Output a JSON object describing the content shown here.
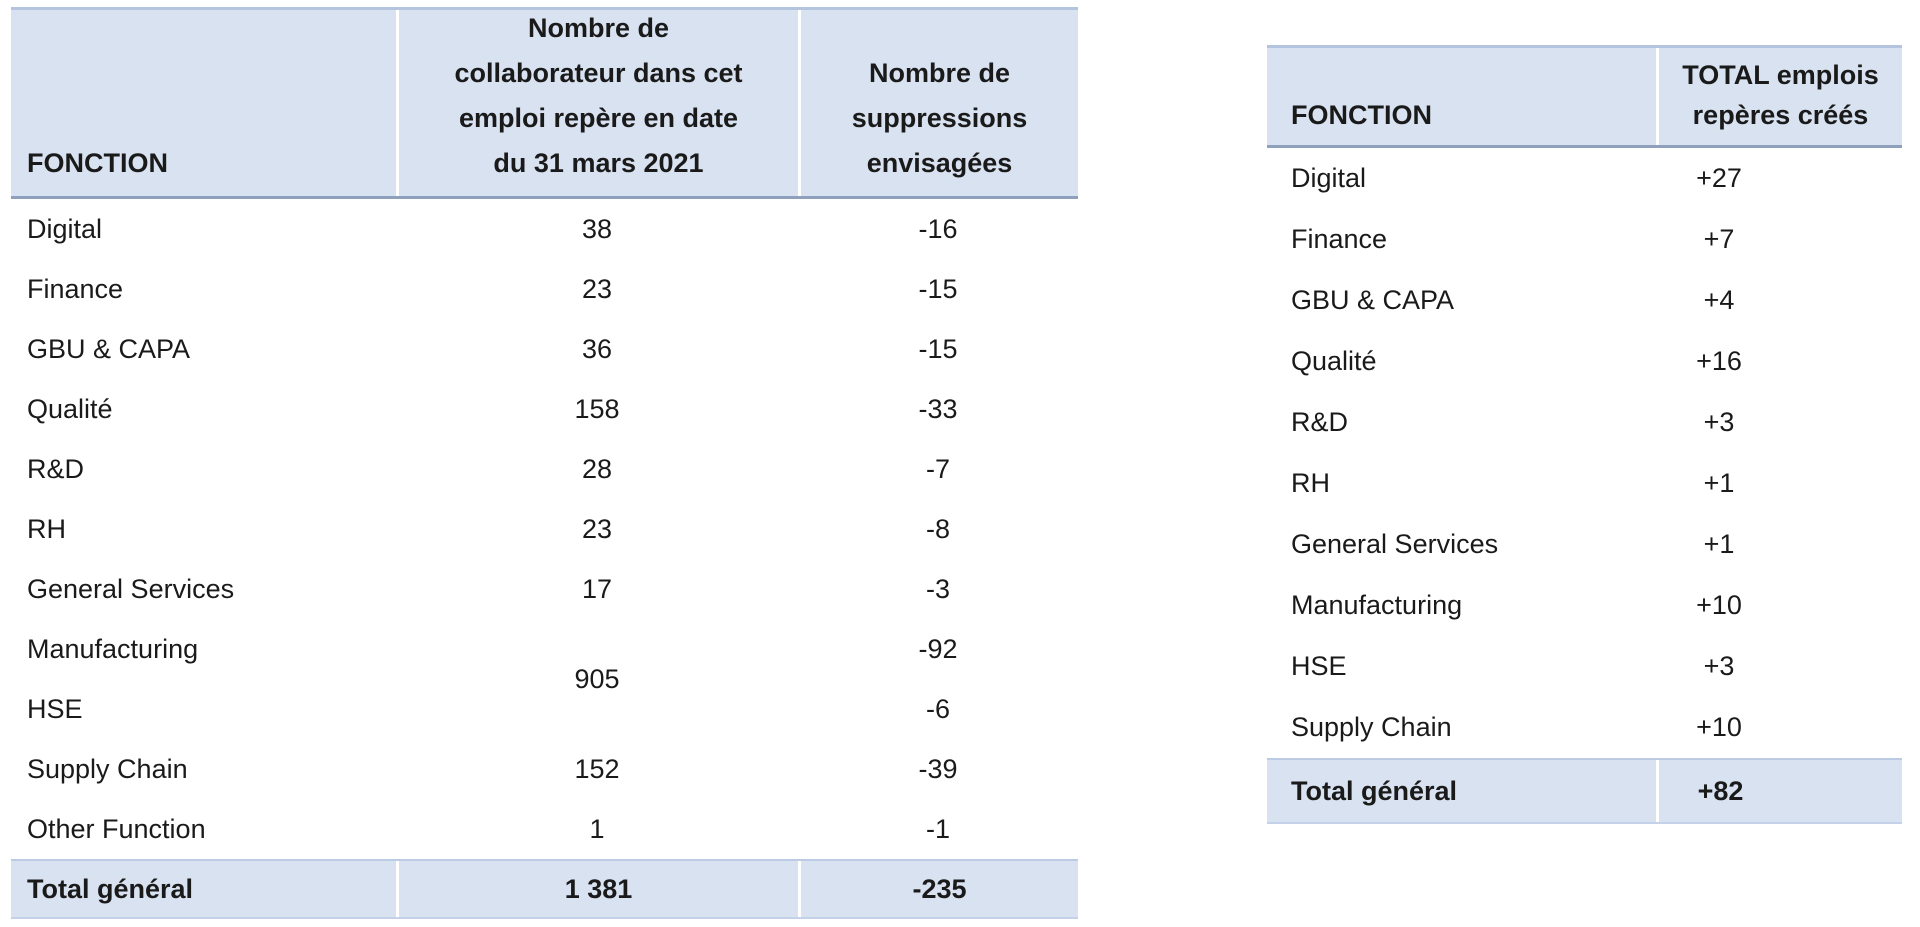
{
  "colors": {
    "band_blue": "#d9e2f1",
    "table_top_border": "#b4c3de",
    "header_rule": "#8fa0bc",
    "total_row_border": "#bccbe4",
    "text": "#1a1a1a"
  },
  "chart_data": [
    {
      "type": "table",
      "name": "headcount-and-planned-suppressions",
      "header": {
        "col1": "FONCTION",
        "col2_lines": [
          "Nombre de",
          "collaborateur dans cet",
          "emploi repère en date",
          "du 31 mars 2021"
        ],
        "col3_lines": [
          "Nombre de",
          "suppressions",
          "envisagées"
        ]
      },
      "rows_before": [
        {
          "fonction": "Digital",
          "headcount": "38",
          "suppressions": "-16"
        },
        {
          "fonction": "Finance",
          "headcount": "23",
          "suppressions": "-15"
        },
        {
          "fonction": "GBU & CAPA",
          "headcount": "36",
          "suppressions": "-15"
        },
        {
          "fonction": "Qualité",
          "headcount": "158",
          "suppressions": "-33"
        },
        {
          "fonction": "R&D",
          "headcount": "28",
          "suppressions": "-7"
        },
        {
          "fonction": "RH",
          "headcount": "23",
          "suppressions": "-8"
        },
        {
          "fonction": "General Services",
          "headcount": "17",
          "suppressions": "-3"
        }
      ],
      "merged_rows": {
        "fonctions": [
          "Manufacturing",
          "HSE"
        ],
        "headcount": "905",
        "suppressions": [
          "-92",
          "-6"
        ]
      },
      "rows_after": [
        {
          "fonction": "Supply Chain",
          "headcount": "152",
          "suppressions": "-39"
        },
        {
          "fonction": "Other Function",
          "headcount": "1",
          "suppressions": "-1"
        }
      ],
      "total": {
        "fonction": "Total général",
        "headcount": "1 381",
        "suppressions": "-235"
      }
    },
    {
      "type": "table",
      "name": "total-reference-jobs-created",
      "header": {
        "col1": "FONCTION",
        "col2_lines": [
          "TOTAL emplois",
          "repères créés"
        ]
      },
      "rows": [
        {
          "fonction": "Digital",
          "value": "+27"
        },
        {
          "fonction": "Finance",
          "value": "+7"
        },
        {
          "fonction": "GBU & CAPA",
          "value": "+4"
        },
        {
          "fonction": "Qualité",
          "value": "+16"
        },
        {
          "fonction": "R&D",
          "value": "+3"
        },
        {
          "fonction": "RH",
          "value": "+1"
        },
        {
          "fonction": "General Services",
          "value": "+1"
        },
        {
          "fonction": "Manufacturing",
          "value": "+10"
        },
        {
          "fonction": "HSE",
          "value": "+3"
        },
        {
          "fonction": "Supply Chain",
          "value": "+10"
        }
      ],
      "total": {
        "fonction": "Total général",
        "value": "+82"
      }
    }
  ]
}
